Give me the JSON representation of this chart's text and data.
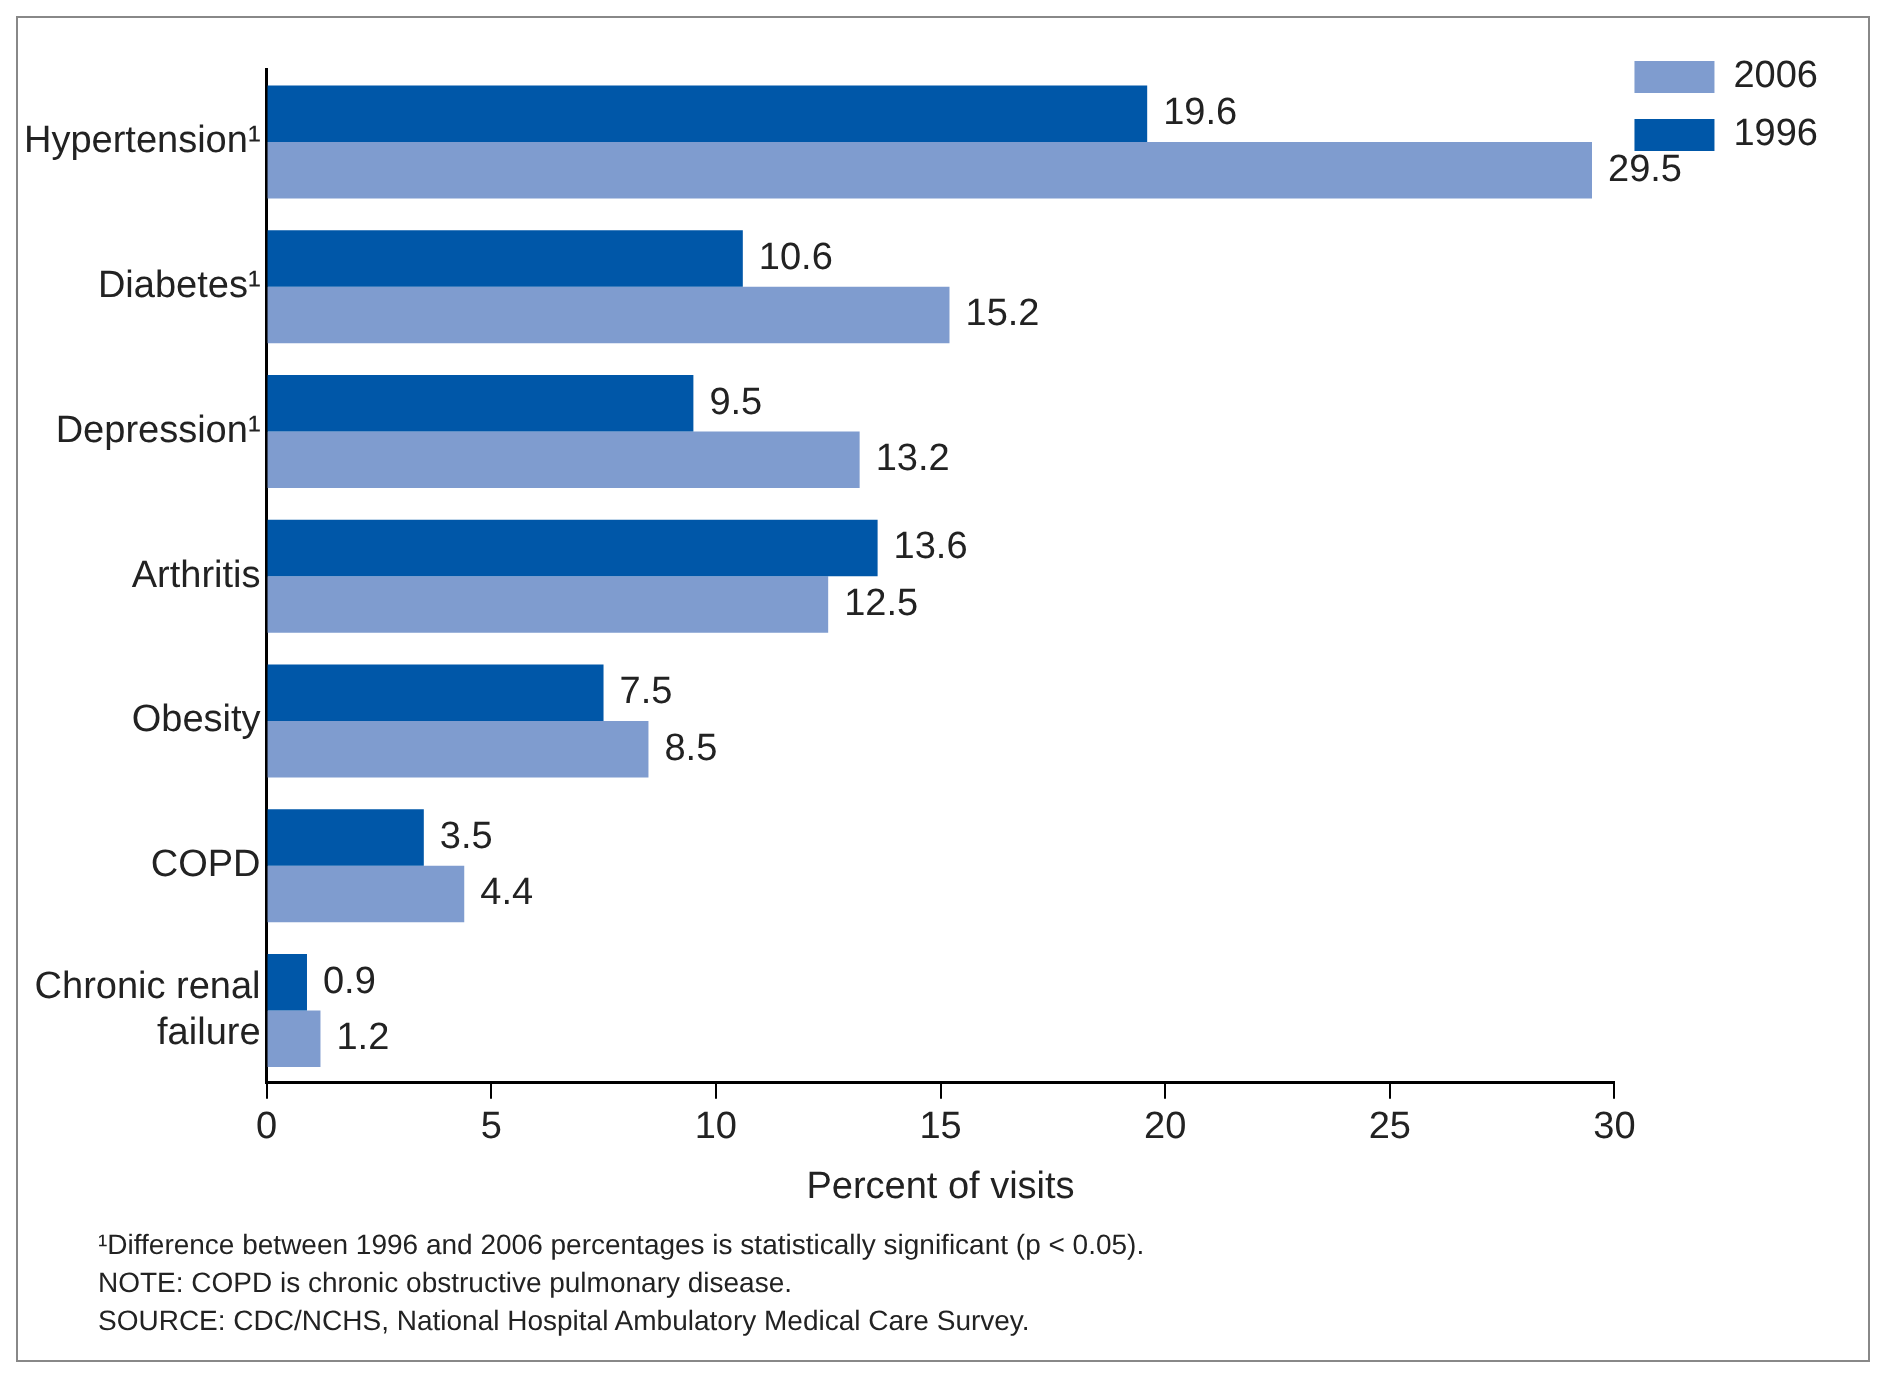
{
  "chart_data": {
    "type": "bar",
    "orientation": "horizontal",
    "categories": [
      "Hypertension¹",
      "Diabetes¹",
      "Depression¹",
      "Arthritis",
      "Obesity",
      "COPD",
      "Chronic renal failure"
    ],
    "series": [
      {
        "name": "1996",
        "color": "#0057a8",
        "values": [
          19.6,
          10.6,
          9.5,
          13.6,
          7.5,
          3.5,
          0.9
        ]
      },
      {
        "name": "2006",
        "color": "#7f9ccf",
        "values": [
          29.5,
          15.2,
          13.2,
          12.5,
          8.5,
          4.4,
          1.2
        ]
      }
    ],
    "xlabel": "Percent of visits",
    "xlim": [
      0,
      30
    ],
    "xticks": [
      0,
      5,
      10,
      15,
      20,
      25,
      30
    ],
    "grid": false,
    "legend": "right",
    "data_labels": true,
    "annotations": [
      "¹Difference between 1996 and 2006 percentages is statistically significant (p < 0.05).",
      "NOTE: COPD is chronic obstructive pulmonary disease.",
      "SOURCE: CDC/NCHS, National Hospital Ambulatory Medical Care Survey."
    ]
  }
}
